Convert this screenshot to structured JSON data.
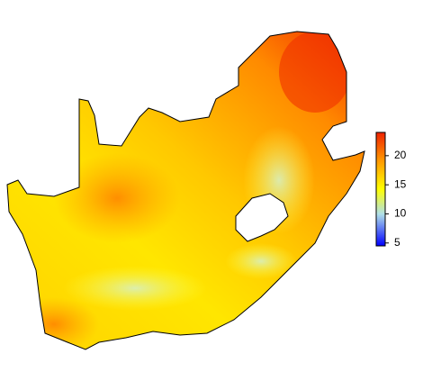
{
  "legend": {
    "range": [
      4.5,
      24
    ],
    "ticks": [
      5,
      10,
      15,
      20
    ]
  }
}
